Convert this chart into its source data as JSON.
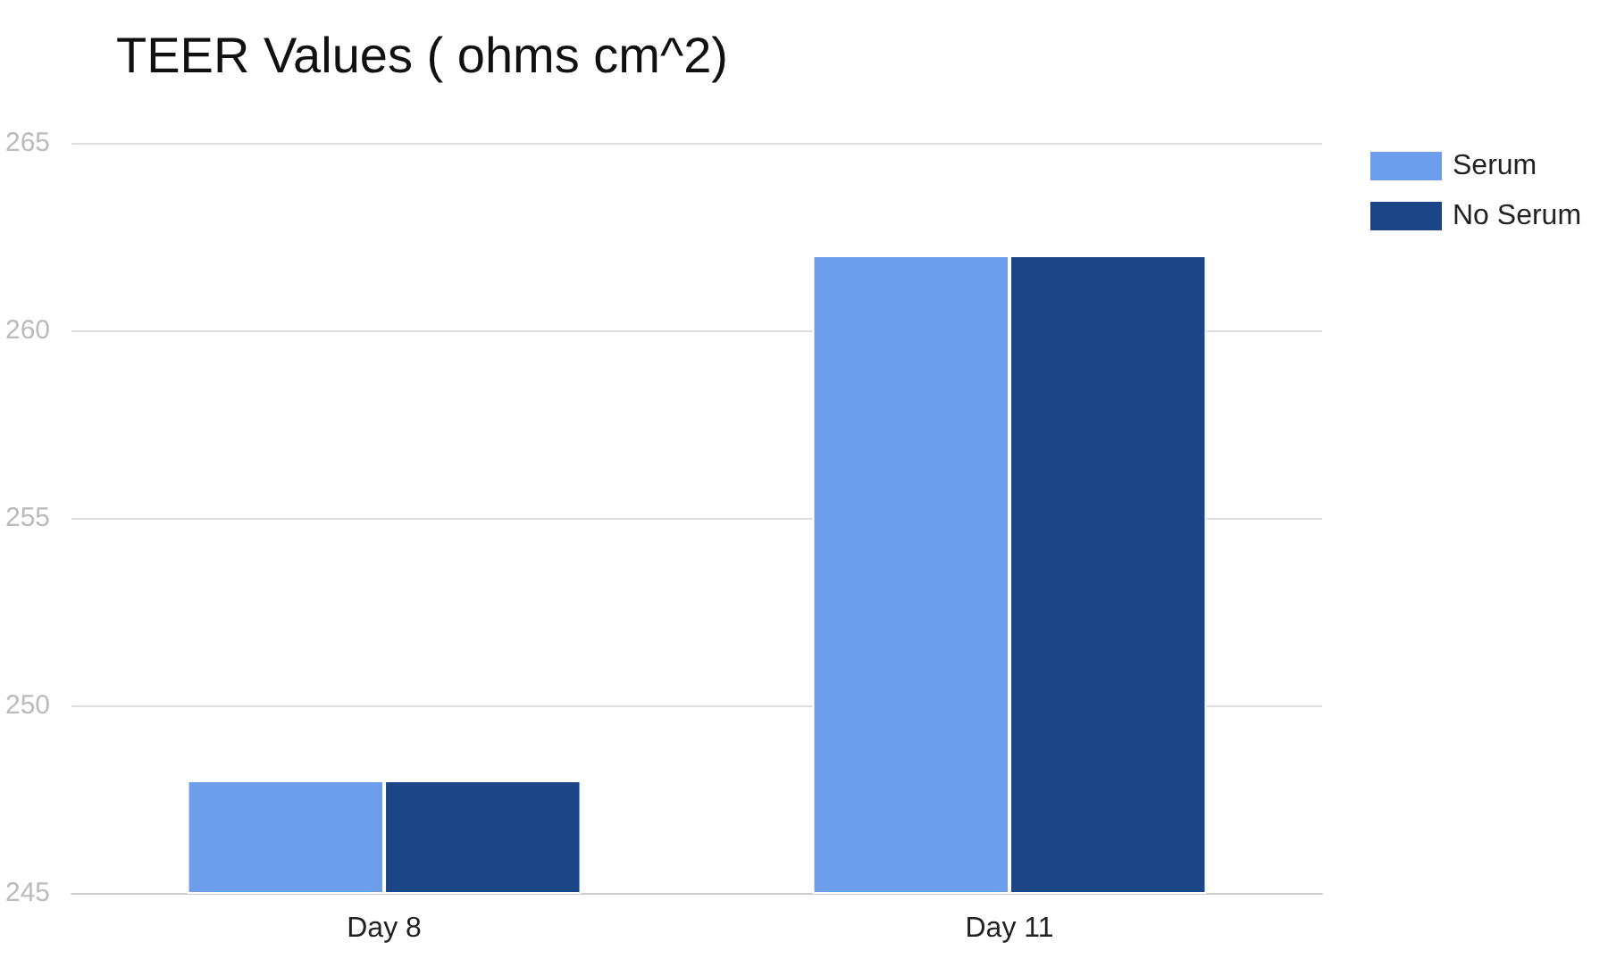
{
  "chart_data": {
    "type": "bar",
    "title": "TEER Values ( ohms cm^2)",
    "categories": [
      "Day 8",
      "Day 11"
    ],
    "series": [
      {
        "name": "Serum",
        "color": "#6d9eeb",
        "values": [
          248,
          262
        ]
      },
      {
        "name": "No Serum",
        "color": "#1c4587",
        "values": [
          248,
          262
        ]
      }
    ],
    "ylim": [
      245,
      265
    ],
    "yticks": [
      245,
      250,
      255,
      260,
      265
    ],
    "grid": "y",
    "legend": "top right"
  }
}
